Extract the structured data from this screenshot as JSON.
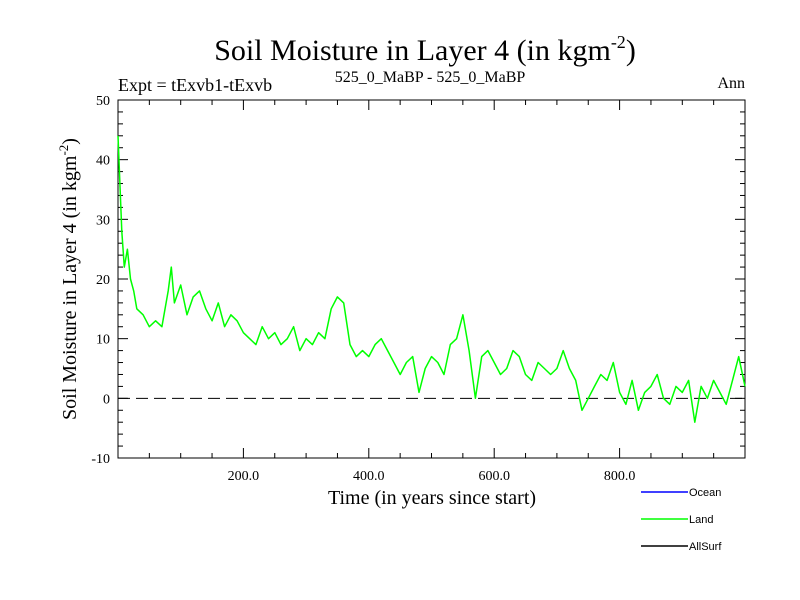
{
  "colors": {
    "land": "#00ff00",
    "ocean": "#0000ff",
    "allsurf": "#000000",
    "axis": "#000000",
    "zero_line": "#000000"
  },
  "chart_data": {
    "type": "line",
    "title_main": "Soil Moisture in Layer 4 (in kgm",
    "title_sup": "-2",
    "title_close": ")",
    "subtitle_left": "Expt = tExvb1-tExvb",
    "subtitle_center": "525_0_MaBP - 525_0_MaBP",
    "subtitle_right": "Ann",
    "xlabel": "Time (in years since start)",
    "ylabel_main": "Soil Moisture in Layer 4 (in kgm",
    "ylabel_sup": "-2",
    "ylabel_close": ")",
    "xlim": [
      0,
      1000
    ],
    "ylim": [
      -10,
      50
    ],
    "x_ticks": [
      200,
      400,
      600,
      800
    ],
    "x_tick_labels": [
      "200.0",
      "400.0",
      "600.0",
      "800.0"
    ],
    "y_ticks": [
      -10,
      0,
      10,
      20,
      30,
      40,
      50
    ],
    "y_tick_labels": [
      "-10",
      "0",
      "10",
      "20",
      "30",
      "40",
      "50"
    ],
    "reference_line": 0,
    "legend": [
      "Ocean",
      "Land",
      "AllSurf"
    ],
    "series": [
      {
        "name": "Land",
        "x": [
          0,
          3,
          6,
          10,
          15,
          20,
          25,
          30,
          40,
          50,
          60,
          70,
          80,
          85,
          90,
          100,
          110,
          120,
          130,
          140,
          150,
          160,
          170,
          180,
          190,
          200,
          210,
          220,
          230,
          240,
          250,
          260,
          270,
          280,
          290,
          300,
          310,
          320,
          330,
          340,
          350,
          360,
          370,
          380,
          390,
          400,
          410,
          420,
          430,
          440,
          450,
          460,
          470,
          480,
          490,
          500,
          510,
          520,
          530,
          540,
          550,
          560,
          570,
          580,
          590,
          600,
          610,
          620,
          630,
          640,
          650,
          660,
          670,
          680,
          690,
          700,
          710,
          720,
          730,
          740,
          750,
          760,
          770,
          780,
          790,
          800,
          810,
          820,
          830,
          840,
          850,
          860,
          870,
          880,
          890,
          900,
          910,
          920,
          930,
          940,
          950,
          960,
          970,
          980,
          990,
          1000
        ],
        "y": [
          44,
          36,
          28,
          22,
          25,
          20,
          18,
          15,
          14,
          12,
          13,
          12,
          18,
          22,
          16,
          19,
          14,
          17,
          18,
          15,
          13,
          16,
          12,
          14,
          13,
          11,
          10,
          9,
          12,
          10,
          11,
          9,
          10,
          12,
          8,
          10,
          9,
          11,
          10,
          15,
          17,
          16,
          9,
          7,
          8,
          7,
          9,
          10,
          8,
          6,
          4,
          6,
          7,
          1,
          5,
          7,
          6,
          4,
          9,
          10,
          14,
          8,
          0,
          7,
          8,
          6,
          4,
          5,
          8,
          7,
          4,
          3,
          6,
          5,
          4,
          5,
          8,
          5,
          3,
          -2,
          0,
          2,
          4,
          3,
          6,
          1,
          -1,
          3,
          -2,
          1,
          2,
          4,
          0,
          -1,
          2,
          1,
          3,
          -4,
          2,
          0,
          3,
          1,
          -1,
          3,
          7,
          2
        ]
      }
    ]
  }
}
